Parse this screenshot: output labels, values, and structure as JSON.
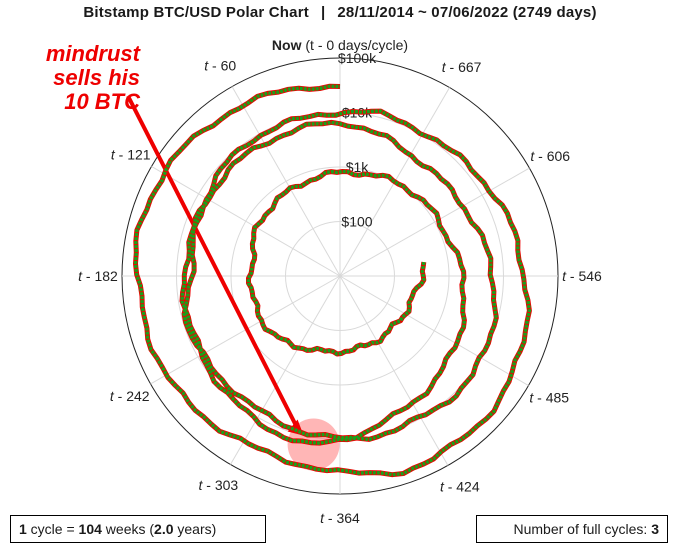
{
  "title": {
    "left": "Bitstamp BTC/USD Polar Chart",
    "separator": "|",
    "right": "28/11/2014 ~ 07/06/2022 (2749 days)"
  },
  "annotation": {
    "text": "mindrust\nsells his\n10 BTC",
    "color": "#ee0000"
  },
  "legend_boxes": {
    "cycle_prefix": "1",
    "cycle_mid": " cycle = ",
    "cycle_weeks": "104",
    "cycle_weeks_unit": " weeks (",
    "cycle_years": "2.0",
    "cycle_suffix": " years)",
    "full_cycles_label": "Number of full cycles: ",
    "full_cycles_value": "3"
  },
  "chart_data": {
    "type": "polar-line",
    "title": "Bitstamp BTC/USD Polar Chart | 28/11/2014 ~ 07/06/2022 (2749 days)",
    "angular_axis": {
      "now_label_bold": "Now",
      "now_label_rest": " (t - 0 days/cycle)",
      "direction": "clockwise from top",
      "period_days": 728,
      "tick_labels": [
        "t - 60",
        "t - 121",
        "t - 182",
        "t - 242",
        "t - 303",
        "t - 364",
        "t - 424",
        "t - 485",
        "t - 546",
        "t - 606",
        "t - 667"
      ],
      "tick_days": [
        60,
        121,
        182,
        242,
        303,
        364,
        424,
        485,
        546,
        606,
        667
      ]
    },
    "radial_axis": {
      "scale": "log",
      "unit": "USD",
      "range": [
        10,
        100000
      ],
      "ticks": [
        100,
        1000,
        10000,
        100000
      ],
      "tick_labels": [
        "$100",
        "$1k",
        "$10k",
        "$100k"
      ]
    },
    "series": [
      {
        "label_color_down": "#ee0000",
        "label_color_up": "#1aa01a",
        "points_days_before_now_price_usd": [
          [
            2749,
            375
          ],
          [
            2700,
            250
          ],
          [
            2650,
            225
          ],
          [
            2600,
            230
          ],
          [
            2550,
            240
          ],
          [
            2500,
            285
          ],
          [
            2450,
            430
          ],
          [
            2400,
            450
          ],
          [
            2350,
            420
          ],
          [
            2300,
            590
          ],
          [
            2250,
            650
          ],
          [
            2200,
            750
          ],
          [
            2150,
            880
          ],
          [
            2100,
            1100
          ],
          [
            2050,
            1200
          ],
          [
            2000,
            1800
          ],
          [
            1950,
            2700
          ],
          [
            1900,
            4000
          ],
          [
            1850,
            6500
          ],
          [
            1800,
            14000
          ],
          [
            1750,
            11000
          ],
          [
            1700,
            8300
          ],
          [
            1650,
            7500
          ],
          [
            1600,
            6500
          ],
          [
            1550,
            6500
          ],
          [
            1500,
            6300
          ],
          [
            1450,
            6400
          ],
          [
            1400,
            3800
          ],
          [
            1350,
            3600
          ],
          [
            1300,
            5000
          ],
          [
            1250,
            8000
          ],
          [
            1200,
            11000
          ],
          [
            1150,
            9800
          ],
          [
            1100,
            10000
          ],
          [
            1050,
            8000
          ],
          [
            1000,
            7200
          ],
          [
            950,
            9000
          ],
          [
            900,
            5000
          ],
          [
            850,
            7000
          ],
          [
            800,
            9500
          ],
          [
            750,
            9300
          ],
          [
            700,
            11500
          ],
          [
            650,
            11000
          ],
          [
            600,
            16000
          ],
          [
            550,
            23000
          ],
          [
            500,
            40000
          ],
          [
            450,
            55000
          ],
          [
            400,
            58000
          ],
          [
            350,
            34000
          ],
          [
            300,
            33000
          ],
          [
            250,
            46000
          ],
          [
            200,
            48000
          ],
          [
            150,
            62000
          ],
          [
            100,
            50000
          ],
          [
            50,
            38000
          ],
          [
            0,
            30000
          ]
        ]
      }
    ],
    "highlight": {
      "days_before_now": 1802,
      "price_usd": 13500,
      "meaning": "annotation point"
    },
    "grid": true
  }
}
